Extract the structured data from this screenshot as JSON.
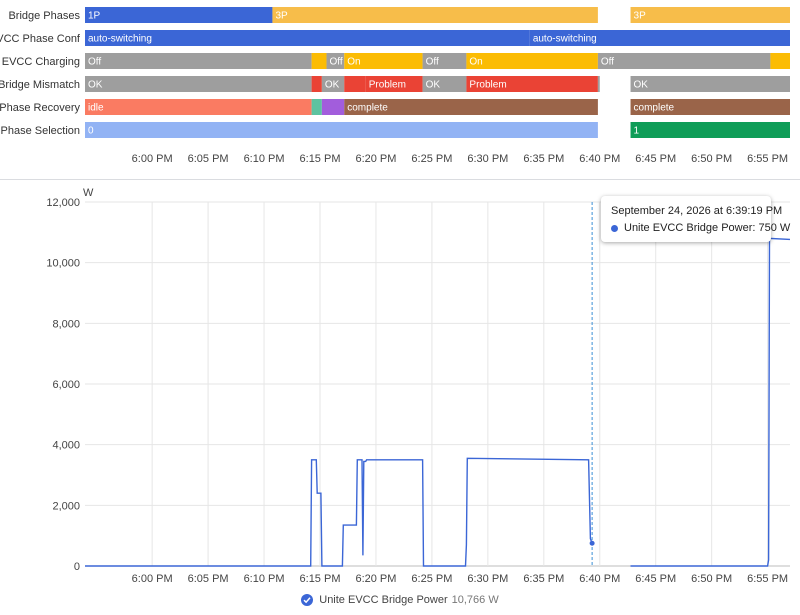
{
  "timeline": {
    "time_start": "17:54",
    "time_end": "18:57",
    "ticks": [
      "6:00 PM",
      "6:05 PM",
      "6:10 PM",
      "6:15 PM",
      "6:20 PM",
      "6:25 PM",
      "6:30 PM",
      "6:35 PM",
      "6:40 PM",
      "6:45 PM",
      "6:50 PM",
      "6:55 PM"
    ],
    "tick_times": [
      "18:00",
      "18:05",
      "18:10",
      "18:15",
      "18:20",
      "18:25",
      "18:30",
      "18:35",
      "18:40",
      "18:45",
      "18:50",
      "18:55"
    ],
    "rows": [
      {
        "label": "Bridge Phases",
        "segments": [
          {
            "start": "17:54",
            "end": "18:10:45",
            "color": "#3b66d6",
            "text": "1P"
          },
          {
            "start": "18:10:45",
            "end": "18:39:50",
            "color": "#f7bd4a",
            "text": "3P"
          },
          {
            "start": "18:42:45",
            "end": "18:57",
            "color": "#f7bd4a",
            "text": "3P"
          }
        ]
      },
      {
        "label": "EVCC Phase Conf",
        "segments": [
          {
            "start": "17:54",
            "end": "18:33:45",
            "color": "#3b66d6",
            "text": "auto-switching"
          },
          {
            "start": "18:33:45",
            "end": "18:57",
            "color": "#3b66d6",
            "text": "auto-switching"
          }
        ]
      },
      {
        "label": "EVCC Charging",
        "segments": [
          {
            "start": "17:54",
            "end": "18:14:15",
            "color": "#9e9e9e",
            "text": "Off"
          },
          {
            "start": "18:14:15",
            "end": "18:15:35",
            "color": "#fbbc04",
            "text": ""
          },
          {
            "start": "18:15:35",
            "end": "18:17:10",
            "color": "#9e9e9e",
            "text": "Off"
          },
          {
            "start": "18:17:10",
            "end": "18:24:10",
            "color": "#fbbc04",
            "text": "On"
          },
          {
            "start": "18:24:10",
            "end": "18:28:05",
            "color": "#9e9e9e",
            "text": "Off"
          },
          {
            "start": "18:28:05",
            "end": "18:39:50",
            "color": "#fbbc04",
            "text": "On"
          },
          {
            "start": "18:33:55",
            "end": "18:34:00",
            "color": "#fbbc04",
            "text": "On"
          },
          {
            "start": "18:39:50",
            "end": "18:55:15",
            "color": "#9e9e9e",
            "text": "Off"
          },
          {
            "start": "18:55:15",
            "end": "18:57",
            "color": "#fbbc04",
            "text": ""
          }
        ]
      },
      {
        "label": "Bridge Mismatch",
        "segments": [
          {
            "start": "17:54",
            "end": "18:14:15",
            "color": "#9e9e9e",
            "text": "OK"
          },
          {
            "start": "18:14:15",
            "end": "18:15:10",
            "color": "#ea4335",
            "text": ""
          },
          {
            "start": "18:15:10",
            "end": "18:17:10",
            "color": "#9e9e9e",
            "text": "OK"
          },
          {
            "start": "18:17:10",
            "end": "18:19:05",
            "color": "#ea4335",
            "text": ""
          },
          {
            "start": "18:19:05",
            "end": "18:24:10",
            "color": "#ea4335",
            "text": "Problem"
          },
          {
            "start": "18:24:10",
            "end": "18:28:05",
            "color": "#9e9e9e",
            "text": "OK"
          },
          {
            "start": "18:28:05",
            "end": "18:39:50",
            "color": "#ea4335",
            "text": "Problem"
          },
          {
            "start": "18:39:50",
            "end": "18:40:00",
            "color": "#9e9e9e",
            "text": ""
          },
          {
            "start": "18:42:45",
            "end": "18:57",
            "color": "#9e9e9e",
            "text": "OK"
          }
        ]
      },
      {
        "label": "Phase Recovery",
        "segments": [
          {
            "start": "17:54",
            "end": "18:14:15",
            "color": "#fa7b62",
            "text": "idle"
          },
          {
            "start": "18:14:15",
            "end": "18:15:10",
            "color": "#5dc3a0",
            "text": ""
          },
          {
            "start": "18:15:10",
            "end": "18:17:10",
            "color": "#a25ddc",
            "text": ""
          },
          {
            "start": "18:17:10",
            "end": "18:39:50",
            "color": "#9a6449",
            "text": "complete"
          },
          {
            "start": "18:42:45",
            "end": "18:57",
            "color": "#9a6449",
            "text": "complete"
          }
        ]
      },
      {
        "label": "Phase Selection",
        "segments": [
          {
            "start": "17:54",
            "end": "18:39:50",
            "color": "#92b3f4",
            "text": "0"
          },
          {
            "start": "18:42:45",
            "end": "18:57",
            "color": "#0f9d58",
            "text": "1"
          }
        ]
      }
    ]
  },
  "chart_data": {
    "type": "line",
    "title": "",
    "xlabel": "",
    "ylabel": "W",
    "x_range": [
      "17:54",
      "18:57"
    ],
    "ylim": [
      0,
      12000
    ],
    "yticks": [
      0,
      2000,
      4000,
      6000,
      8000,
      10000,
      12000
    ],
    "ytick_labels": [
      "0",
      "2,000",
      "4,000",
      "6,000",
      "8,000",
      "10,000",
      "12,000"
    ],
    "xticks": [
      "6:00 PM",
      "6:05 PM",
      "6:10 PM",
      "6:15 PM",
      "6:20 PM",
      "6:25 PM",
      "6:30 PM",
      "6:35 PM",
      "6:40 PM",
      "6:45 PM",
      "6:50 PM",
      "6:55 PM"
    ],
    "xtick_times": [
      "18:00",
      "18:05",
      "18:10",
      "18:15",
      "18:20",
      "18:25",
      "18:30",
      "18:35",
      "18:40",
      "18:45",
      "18:50",
      "18:55"
    ],
    "grid": true,
    "legend_position": "bottom",
    "series": [
      {
        "name": "Unite EVCC Bridge Power",
        "color": "#3b66d6",
        "segments": [
          [
            [
              "17:54",
              0
            ],
            [
              "18:14:10",
              0
            ],
            [
              "18:14:15",
              3500
            ],
            [
              "18:14:40",
              3500
            ],
            [
              "18:14:45",
              2400
            ],
            [
              "18:15:05",
              2400
            ],
            [
              "18:15:10",
              0
            ],
            [
              "18:17:00",
              0
            ],
            [
              "18:17:05",
              1350
            ],
            [
              "18:18:15",
              1350
            ],
            [
              "18:18:20",
              3500
            ],
            [
              "18:18:45",
              3500
            ],
            [
              "18:18:50",
              350
            ],
            [
              "18:18:55",
              3450
            ],
            [
              "18:19:05",
              3450
            ],
            [
              "18:19:10",
              3500
            ],
            [
              "18:23:50",
              3500
            ],
            [
              "18:24:10",
              3500
            ],
            [
              "18:24:15",
              0
            ],
            [
              "18:28:00",
              0
            ],
            [
              "18:28:05",
              700
            ],
            [
              "18:28:10",
              3550
            ],
            [
              "18:39:00",
              3500
            ],
            [
              "18:39:10",
              900
            ],
            [
              "18:39:19",
              750
            ],
            [
              "18:39:25",
              750
            ]
          ],
          [
            [
              "18:42:45",
              0
            ],
            [
              "18:55:00",
              0
            ],
            [
              "18:55:05",
              200
            ],
            [
              "18:55:10",
              10800
            ],
            [
              "18:57",
              10766
            ]
          ]
        ]
      }
    ],
    "hover": {
      "time": "18:39:19",
      "timestamp_label": "September 24, 2026 at 6:39:19 PM",
      "series_name": "Unite EVCC Bridge Power",
      "value_text": "750 W",
      "value": 750
    },
    "legend": {
      "name": "Unite EVCC Bridge Power",
      "value_text": "10,766 W"
    }
  }
}
